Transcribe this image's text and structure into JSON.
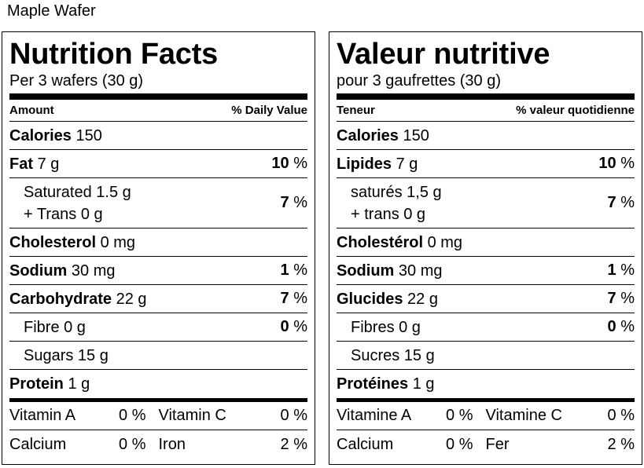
{
  "product_name": "Maple Wafer",
  "panels": [
    {
      "title": "Nutrition Facts",
      "serving": "Per 3 wafers (30 g)",
      "header_amount": "Amount",
      "header_dv": "% Daily Value",
      "calories": {
        "label": "Calories",
        "value": "150"
      },
      "fat": {
        "label": "Fat",
        "amount": "7 g",
        "dv": "10",
        "pct": "%"
      },
      "saturated": {
        "line1": "Saturated 1.5 g",
        "line2": "+ Trans 0 g",
        "dv": "7",
        "pct": "%"
      },
      "cholesterol": {
        "label": "Cholesterol",
        "amount": "0 mg"
      },
      "sodium": {
        "label": "Sodium",
        "amount": "30 mg",
        "dv": "1",
        "pct": "%"
      },
      "carbohydrate": {
        "label": "Carbohydrate",
        "amount": "22 g",
        "dv": "7",
        "pct": "%"
      },
      "fibre": {
        "label": "Fibre 0 g",
        "dv": "0",
        "pct": "%"
      },
      "sugars": {
        "label": "Sugars 15 g"
      },
      "protein": {
        "label": "Protein",
        "amount": "1 g"
      },
      "vitamin_a": {
        "label": "Vitamin A",
        "value": "0 %"
      },
      "vitamin_c": {
        "label": "Vitamin C",
        "value": "0 %"
      },
      "calcium": {
        "label": "Calcium",
        "value": "0 %"
      },
      "iron": {
        "label": "Iron",
        "value": "2 %"
      }
    },
    {
      "title": "Valeur nutritive",
      "serving": "pour 3 gaufrettes (30 g)",
      "header_amount": "Teneur",
      "header_dv": "% valeur quotidienne",
      "calories": {
        "label": "Calories",
        "value": "150"
      },
      "fat": {
        "label": "Lipides",
        "amount": "7 g",
        "dv": "10",
        "pct": "%"
      },
      "saturated": {
        "line1": "saturés 1,5 g",
        "line2": "+ trans 0 g",
        "dv": "7",
        "pct": "%"
      },
      "cholesterol": {
        "label": "Cholestérol",
        "amount": "0 mg"
      },
      "sodium": {
        "label": "Sodium",
        "amount": "30 mg",
        "dv": "1",
        "pct": "%"
      },
      "carbohydrate": {
        "label": "Glucides",
        "amount": "22 g",
        "dv": "7",
        "pct": "%"
      },
      "fibre": {
        "label": "Fibres 0 g",
        "dv": "0",
        "pct": "%"
      },
      "sugars": {
        "label": "Sucres 15 g"
      },
      "protein": {
        "label": "Protéines",
        "amount": "1 g"
      },
      "vitamin_a": {
        "label": "Vitamine A",
        "value": "0 %"
      },
      "vitamin_c": {
        "label": "Vitamine C",
        "value": "0 %"
      },
      "calcium": {
        "label": "Calcium",
        "value": "0 %"
      },
      "iron": {
        "label": "Fer",
        "value": "2 %"
      }
    }
  ]
}
